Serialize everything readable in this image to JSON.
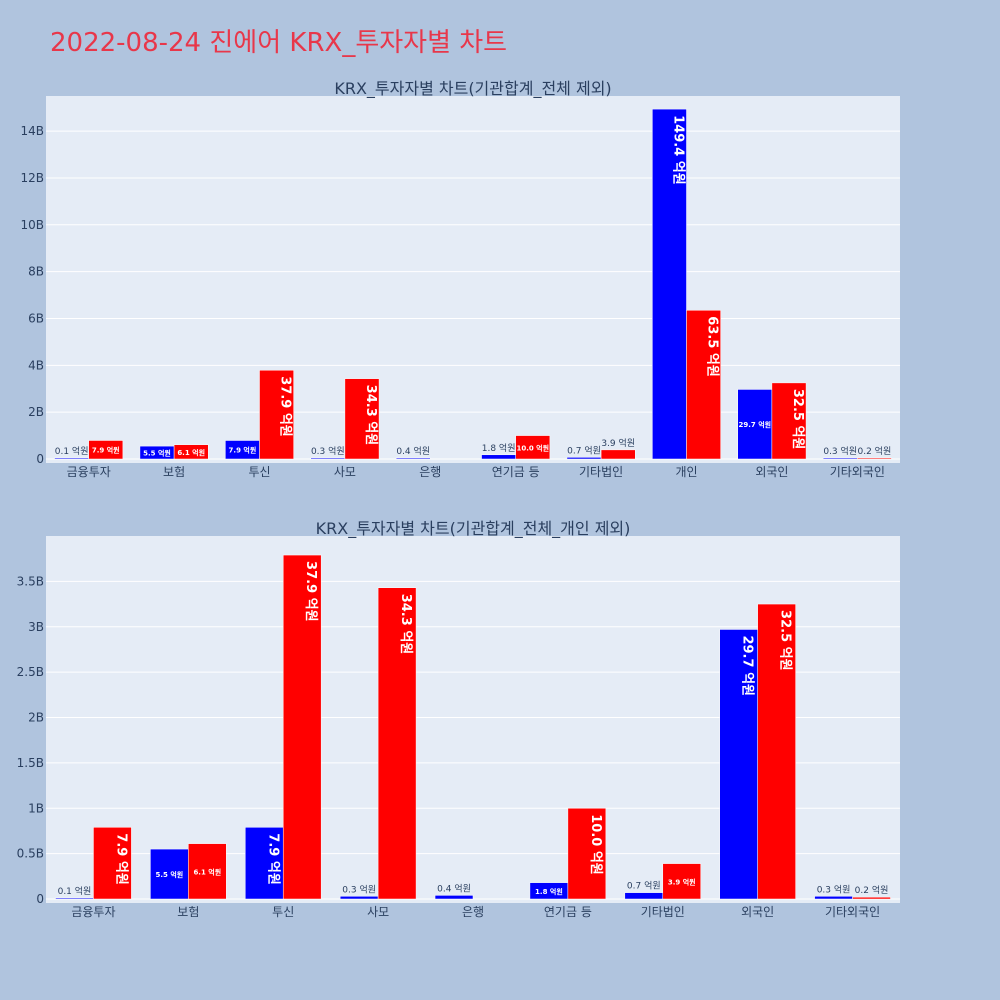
{
  "page": {
    "title": "2022-08-24 진에어 KRX_투자자별 차트"
  },
  "colors": {
    "background": "#b0c4de",
    "plot_bg": "#e5ecf6",
    "title": "#e8374a",
    "buy": "#0000ff",
    "sell": "#ff0000"
  },
  "chart_data": [
    {
      "type": "bar",
      "title": "KRX_투자자별 차트(기관합계_전체 제외)",
      "categories": [
        "금융투자",
        "보험",
        "투신",
        "사모",
        "은행",
        "연기금 등",
        "기타법인",
        "개인",
        "외국인",
        "기타외국인"
      ],
      "ylim": [
        0,
        15.5
      ],
      "yticks": [
        0,
        2,
        4,
        6,
        8,
        10,
        12,
        14
      ],
      "ytick_labels": [
        "0",
        "2B",
        "4B",
        "6B",
        "8B",
        "10B",
        "12B",
        "14B"
      ],
      "grid": true,
      "series": [
        {
          "color": "#0000ff",
          "values": [
            0.01,
            0.55,
            0.79,
            0.03,
            0.04,
            0.18,
            0.07,
            14.94,
            2.97,
            0.03
          ],
          "labels": [
            "0.1 억원",
            "5.5 억원",
            "7.9 억원",
            "0.3 억원",
            "0.4 억원",
            "1.8 억원",
            "0.7 억원",
            "149.4 억원",
            "29.7 억원",
            "0.3 억원"
          ]
        },
        {
          "color": "#ff0000",
          "values": [
            0.79,
            0.61,
            3.79,
            3.43,
            0,
            1.0,
            0.39,
            6.35,
            3.25,
            0.02
          ],
          "labels": [
            "7.9 억원",
            "6.1 억원",
            "37.9 억원",
            "34.3 억원",
            "",
            "10.0 억원",
            "3.9 억원",
            "63.5 억원",
            "32.5 억원",
            "0.2 억원"
          ]
        }
      ]
    },
    {
      "type": "bar",
      "title": "KRX_투자자별 차트(기관합계_전체_개인 제외)",
      "categories": [
        "금융투자",
        "보험",
        "투신",
        "사모",
        "은행",
        "연기금 등",
        "기타법인",
        "외국인",
        "기타외국인"
      ],
      "ylim": [
        0,
        4.0
      ],
      "yticks": [
        0,
        0.5,
        1,
        1.5,
        2,
        2.5,
        3,
        3.5
      ],
      "ytick_labels": [
        "0",
        "0.5B",
        "1B",
        "1.5B",
        "2B",
        "2.5B",
        "3B",
        "3.5B"
      ],
      "grid": true,
      "series": [
        {
          "color": "#0000ff",
          "values": [
            0.01,
            0.55,
            0.79,
            0.03,
            0.04,
            0.18,
            0.07,
            2.97,
            0.03
          ],
          "labels": [
            "0.1 억원",
            "5.5 억원",
            "7.9 억원",
            "0.3 억원",
            "0.4 억원",
            "1.8 억원",
            "0.7 억원",
            "29.7 억원",
            "0.3 억원"
          ]
        },
        {
          "color": "#ff0000",
          "values": [
            0.79,
            0.61,
            3.79,
            3.43,
            0,
            1.0,
            0.39,
            3.25,
            0.02
          ],
          "labels": [
            "7.9 억원",
            "6.1 억원",
            "37.9 억원",
            "34.3 억원",
            "",
            "10.0 억원",
            "3.9 억원",
            "32.5 억원",
            "0.2 억원"
          ]
        }
      ]
    }
  ]
}
